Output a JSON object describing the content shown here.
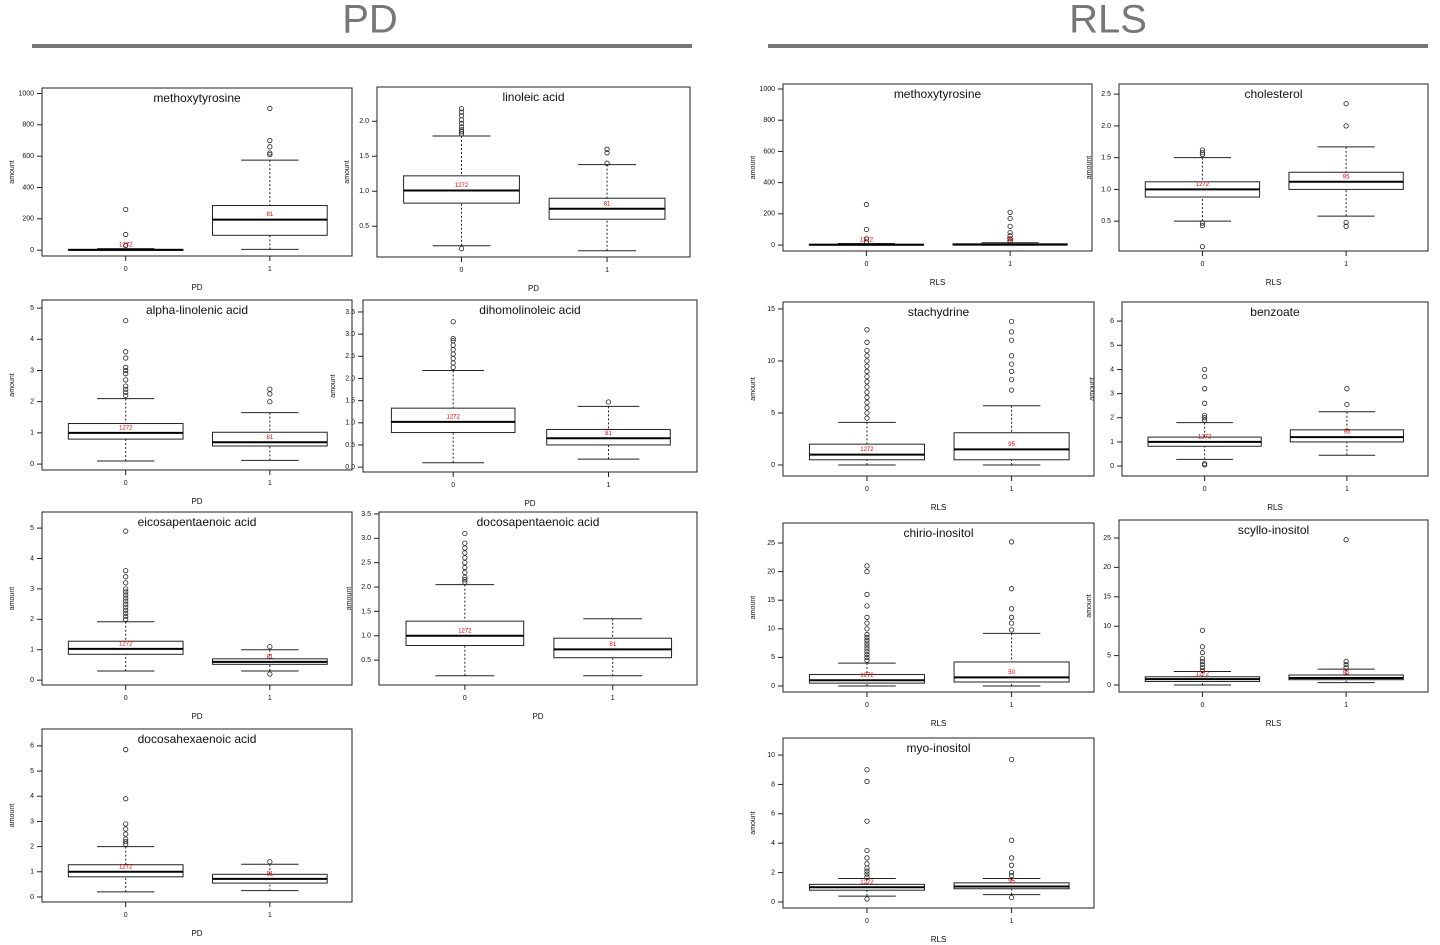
{
  "sections": [
    "PD",
    "RLS"
  ],
  "chart_data": [
    {
      "type": "box",
      "title": "methoxytyrosine",
      "xlabel": "PD",
      "ylabel": "amount",
      "categories": [
        "0",
        "1"
      ],
      "ylim": [
        -37,
        1035
      ],
      "yticks": [
        0,
        200,
        400,
        600,
        800,
        1000
      ],
      "boxes": [
        {
          "whislo": 0,
          "q1": 0,
          "median": 2,
          "q3": 5,
          "whishi": 10,
          "outliers": [
            30,
            100,
            260
          ],
          "n": 1272
        },
        {
          "whislo": 5,
          "q1": 95,
          "median": 195,
          "q3": 285,
          "whishi": 575,
          "outliers": [
            610,
            620,
            660,
            700,
            905
          ],
          "n": 81
        }
      ]
    },
    {
      "type": "box",
      "title": "linoleic acid",
      "xlabel": "PD",
      "ylabel": "amount",
      "categories": [
        "0",
        "1"
      ],
      "ylim": [
        0.06,
        2.49
      ],
      "yticks": [
        0.5,
        {
          "value": 1,
          "label": "1.0"
        },
        1.5,
        {
          "value": 2,
          "label": "2.0"
        }
      ],
      "boxes": [
        {
          "whislo": 0.22,
          "q1": 0.83,
          "median": 1.01,
          "q3": 1.22,
          "whishi": 1.79,
          "outliers": [
            0.18,
            1.82,
            1.85,
            1.88,
            1.92,
            1.97,
            2.02,
            2.08,
            2.13,
            2.18
          ],
          "n": 1272
        },
        {
          "whislo": 0.15,
          "q1": 0.6,
          "median": 0.75,
          "q3": 0.9,
          "whishi": 1.38,
          "outliers": [
            1.4,
            1.55,
            1.6
          ],
          "n": 81
        }
      ]
    },
    {
      "type": "box",
      "title": "alpha-linolenic acid",
      "xlabel": "PD",
      "ylabel": "amount",
      "categories": [
        "0",
        "1"
      ],
      "ylim": [
        -0.19,
        5.26
      ],
      "yticks": [
        0,
        1,
        2,
        3,
        4,
        5
      ],
      "boxes": [
        {
          "whislo": 0.1,
          "q1": 0.8,
          "median": 1.0,
          "q3": 1.3,
          "whishi": 2.1,
          "outliers": [
            2.2,
            2.3,
            2.4,
            2.5,
            2.7,
            2.9,
            3.0,
            3.1,
            3.4,
            3.6,
            4.6
          ],
          "n": 1272
        },
        {
          "whislo": 0.12,
          "q1": 0.58,
          "median": 0.7,
          "q3": 1.02,
          "whishi": 1.65,
          "outliers": [
            2.0,
            2.25,
            2.4
          ],
          "n": 81
        }
      ]
    },
    {
      "type": "box",
      "title": "dihomolinoleic acid",
      "xlabel": "PD",
      "ylabel": "amount",
      "categories": [
        "0",
        "1"
      ],
      "ylim": [
        -0.11,
        3.77
      ],
      "yticks": [
        {
          "value": 0,
          "label": "0.0"
        },
        0.5,
        {
          "value": 1,
          "label": "1.0"
        },
        1.5,
        {
          "value": 2,
          "label": "2.0"
        },
        2.5,
        {
          "value": 3,
          "label": "3.0"
        },
        3.5
      ],
      "boxes": [
        {
          "whislo": 0.1,
          "q1": 0.78,
          "median": 1.02,
          "q3": 1.33,
          "whishi": 2.18,
          "outliers": [
            2.25,
            2.35,
            2.45,
            2.55,
            2.65,
            2.75,
            2.85,
            2.9,
            3.28
          ],
          "n": 1272
        },
        {
          "whislo": 0.18,
          "q1": 0.5,
          "median": 0.65,
          "q3": 0.85,
          "whishi": 1.37,
          "outliers": [
            1.47
          ],
          "n": 81
        }
      ]
    },
    {
      "type": "box",
      "title": "eicosapentaenoic acid",
      "xlabel": "PD",
      "ylabel": "amount",
      "categories": [
        "0",
        "1"
      ],
      "ylim": [
        -0.16,
        5.53
      ],
      "yticks": [
        0,
        1,
        2,
        3,
        4,
        5
      ],
      "boxes": [
        {
          "whislo": 0.3,
          "q1": 0.85,
          "median": 1.03,
          "q3": 1.28,
          "whishi": 1.92,
          "outliers": [
            2.0,
            2.1,
            2.2,
            2.3,
            2.4,
            2.5,
            2.6,
            2.7,
            2.8,
            2.9,
            3.0,
            3.2,
            3.4,
            3.6,
            4.9
          ],
          "n": 1272
        },
        {
          "whislo": 0.3,
          "q1": 0.52,
          "median": 0.6,
          "q3": 0.7,
          "whishi": 1.0,
          "outliers": [
            0.2,
            1.1
          ],
          "n": 81
        }
      ]
    },
    {
      "type": "box",
      "title": "docosapentaenoic acid",
      "xlabel": "PD",
      "ylabel": "amount",
      "categories": [
        "0",
        "1"
      ],
      "ylim": [
        -0.01,
        3.54
      ],
      "yticks": [
        0.5,
        {
          "value": 1,
          "label": "1.0"
        },
        1.5,
        {
          "value": 2,
          "label": "2.0"
        },
        2.5,
        {
          "value": 3,
          "label": "3.0"
        },
        3.5
      ],
      "boxes": [
        {
          "whislo": 0.18,
          "q1": 0.8,
          "median": 1.0,
          "q3": 1.3,
          "whishi": 2.05,
          "outliers": [
            2.1,
            2.15,
            2.2,
            2.3,
            2.4,
            2.5,
            2.6,
            2.7,
            2.8,
            2.9,
            3.1
          ],
          "n": 1272
        },
        {
          "whislo": 0.18,
          "q1": 0.55,
          "median": 0.72,
          "q3": 0.95,
          "whishi": 1.35,
          "outliers": [],
          "n": 81
        }
      ]
    },
    {
      "type": "box",
      "title": "docosahexaenoic acid",
      "xlabel": "PD",
      "ylabel": "amount",
      "categories": [
        "0",
        "1"
      ],
      "ylim": [
        -0.2,
        6.67
      ],
      "yticks": [
        0,
        1,
        2,
        3,
        4,
        5,
        6
      ],
      "boxes": [
        {
          "whislo": 0.2,
          "q1": 0.8,
          "median": 1.0,
          "q3": 1.28,
          "whishi": 2.0,
          "outliers": [
            2.1,
            2.2,
            2.3,
            2.5,
            2.7,
            2.9,
            3.9,
            5.85
          ],
          "n": 1272
        },
        {
          "whislo": 0.25,
          "q1": 0.55,
          "median": 0.72,
          "q3": 0.9,
          "whishi": 1.3,
          "outliers": [
            1.4
          ],
          "n": 81
        }
      ]
    },
    {
      "type": "box",
      "title": "methoxytyrosine",
      "xlabel": "RLS",
      "ylabel": "amount",
      "categories": [
        "0",
        "1"
      ],
      "ylim": [
        -38,
        1032
      ],
      "yticks": [
        0,
        200,
        400,
        600,
        800,
        1000
      ],
      "boxes": [
        {
          "whislo": 0,
          "q1": 0,
          "median": 2,
          "q3": 5,
          "whishi": 10,
          "outliers": [
            20,
            40,
            100,
            260
          ],
          "n": 1272
        },
        {
          "whislo": 0,
          "q1": 1,
          "median": 3,
          "q3": 8,
          "whishi": 15,
          "outliers": [
            25,
            40,
            60,
            80,
            120,
            170,
            210
          ],
          "n": 95
        }
      ]
    },
    {
      "type": "box",
      "title": "cholesterol",
      "xlabel": "RLS",
      "ylabel": "amount",
      "categories": [
        "0",
        "1"
      ],
      "ylim": [
        0.03,
        2.66
      ],
      "yticks": [
        0.5,
        {
          "value": 1,
          "label": "1.0"
        },
        1.5,
        {
          "value": 2,
          "label": "2.0"
        },
        2.5
      ],
      "boxes": [
        {
          "whislo": 0.5,
          "q1": 0.88,
          "median": 1.0,
          "q3": 1.12,
          "whishi": 1.5,
          "outliers": [
            0.1,
            0.43,
            0.47,
            1.55,
            1.58,
            1.62
          ],
          "n": 1272
        },
        {
          "whislo": 0.58,
          "q1": 1.0,
          "median": 1.12,
          "q3": 1.27,
          "whishi": 1.67,
          "outliers": [
            0.42,
            0.48,
            2.0,
            2.35
          ],
          "n": 95
        }
      ]
    },
    {
      "type": "box",
      "title": "stachydrine",
      "xlabel": "RLS",
      "ylabel": "amount",
      "categories": [
        "0",
        "1"
      ],
      "ylim": [
        -1.06,
        15.67
      ],
      "yticks": [
        0,
        5,
        10,
        15
      ],
      "boxes": [
        {
          "whislo": 0,
          "q1": 0.5,
          "median": 1,
          "q3": 2,
          "whishi": 4.1,
          "outliers": [
            4.5,
            5,
            5.5,
            6,
            6.5,
            7,
            7.5,
            8,
            8.5,
            9,
            9.5,
            10,
            10.5,
            11,
            11.8,
            13
          ],
          "n": 1272
        },
        {
          "whislo": 0,
          "q1": 0.5,
          "median": 1.5,
          "q3": 3.1,
          "whishi": 5.7,
          "outliers": [
            7.2,
            8.2,
            9,
            9.7,
            10.5,
            12,
            12.8,
            13.8
          ],
          "n": 95
        }
      ]
    },
    {
      "type": "box",
      "title": "benzoate",
      "xlabel": "RLS",
      "ylabel": "amount",
      "categories": [
        "0",
        "1"
      ],
      "ylim": [
        -0.41,
        6.79
      ],
      "yticks": [
        0,
        1,
        2,
        3,
        4,
        5,
        6
      ],
      "boxes": [
        {
          "whislo": 0.28,
          "q1": 0.82,
          "median": 1.0,
          "q3": 1.2,
          "whishi": 1.8,
          "outliers": [
            0.05,
            0.1,
            1.9,
            2.0,
            2.1,
            2.6,
            3.2,
            3.7,
            4.0
          ],
          "n": 1272
        },
        {
          "whislo": 0.45,
          "q1": 1.0,
          "median": 1.2,
          "q3": 1.5,
          "whishi": 2.25,
          "outliers": [
            2.55,
            3.2
          ],
          "n": 95
        }
      ]
    },
    {
      "type": "box",
      "title": "chirio-inositol",
      "xlabel": "RLS",
      "ylabel": "amount",
      "categories": [
        "0",
        "1"
      ],
      "ylim": [
        -1.05,
        28.5
      ],
      "yticks": [
        0,
        5,
        10,
        15,
        20,
        25
      ],
      "boxes": [
        {
          "whislo": 0,
          "q1": 0.5,
          "median": 1,
          "q3": 2,
          "whishi": 4,
          "outliers": [
            4.5,
            5,
            5.5,
            6,
            6.5,
            7,
            7.5,
            8,
            8.5,
            9,
            10,
            11,
            12,
            14,
            16,
            20,
            21
          ],
          "n": 1272
        },
        {
          "whislo": 0,
          "q1": 0.7,
          "median": 1.5,
          "q3": 4.2,
          "whishi": 9.2,
          "outliers": [
            9.8,
            11,
            12,
            13.5,
            17,
            25.2
          ],
          "n": 50
        }
      ]
    },
    {
      "type": "box",
      "title": "scyllo-inositol",
      "xlabel": "RLS",
      "ylabel": "amount",
      "categories": [
        "0",
        "1"
      ],
      "ylim": [
        -1.19,
        28.06
      ],
      "yticks": [
        0,
        5,
        10,
        15,
        20,
        25
      ],
      "boxes": [
        {
          "whislo": 0,
          "q1": 0.6,
          "median": 1,
          "q3": 1.4,
          "whishi": 2.3,
          "outliers": [
            2.5,
            3,
            3.5,
            4,
            4.5,
            5.5,
            6.5,
            9.3
          ],
          "n": 1272
        },
        {
          "whislo": 0.4,
          "q1": 0.9,
          "median": 1.2,
          "q3": 1.7,
          "whishi": 2.7,
          "outliers": [
            3,
            3.5,
            4,
            24.7
          ],
          "n": 95
        }
      ]
    },
    {
      "type": "box",
      "title": "myo-inositol",
      "xlabel": "RLS",
      "ylabel": "amount",
      "categories": [
        "0",
        "1"
      ],
      "ylim": [
        -0.41,
        11.16
      ],
      "yticks": [
        0,
        2,
        4,
        6,
        8,
        10
      ],
      "boxes": [
        {
          "whislo": 0.4,
          "q1": 0.8,
          "median": 1.0,
          "q3": 1.2,
          "whishi": 1.6,
          "outliers": [
            0.2,
            1.7,
            1.9,
            2.1,
            2.3,
            2.6,
            3.0,
            3.5,
            5.5,
            8.2,
            9.0
          ],
          "n": 1272
        },
        {
          "whislo": 0.5,
          "q1": 0.9,
          "median": 1.05,
          "q3": 1.3,
          "whishi": 1.6,
          "outliers": [
            0.3,
            1.8,
            2.0,
            2.5,
            3.0,
            4.2,
            9.7
          ],
          "n": 95
        }
      ]
    }
  ]
}
